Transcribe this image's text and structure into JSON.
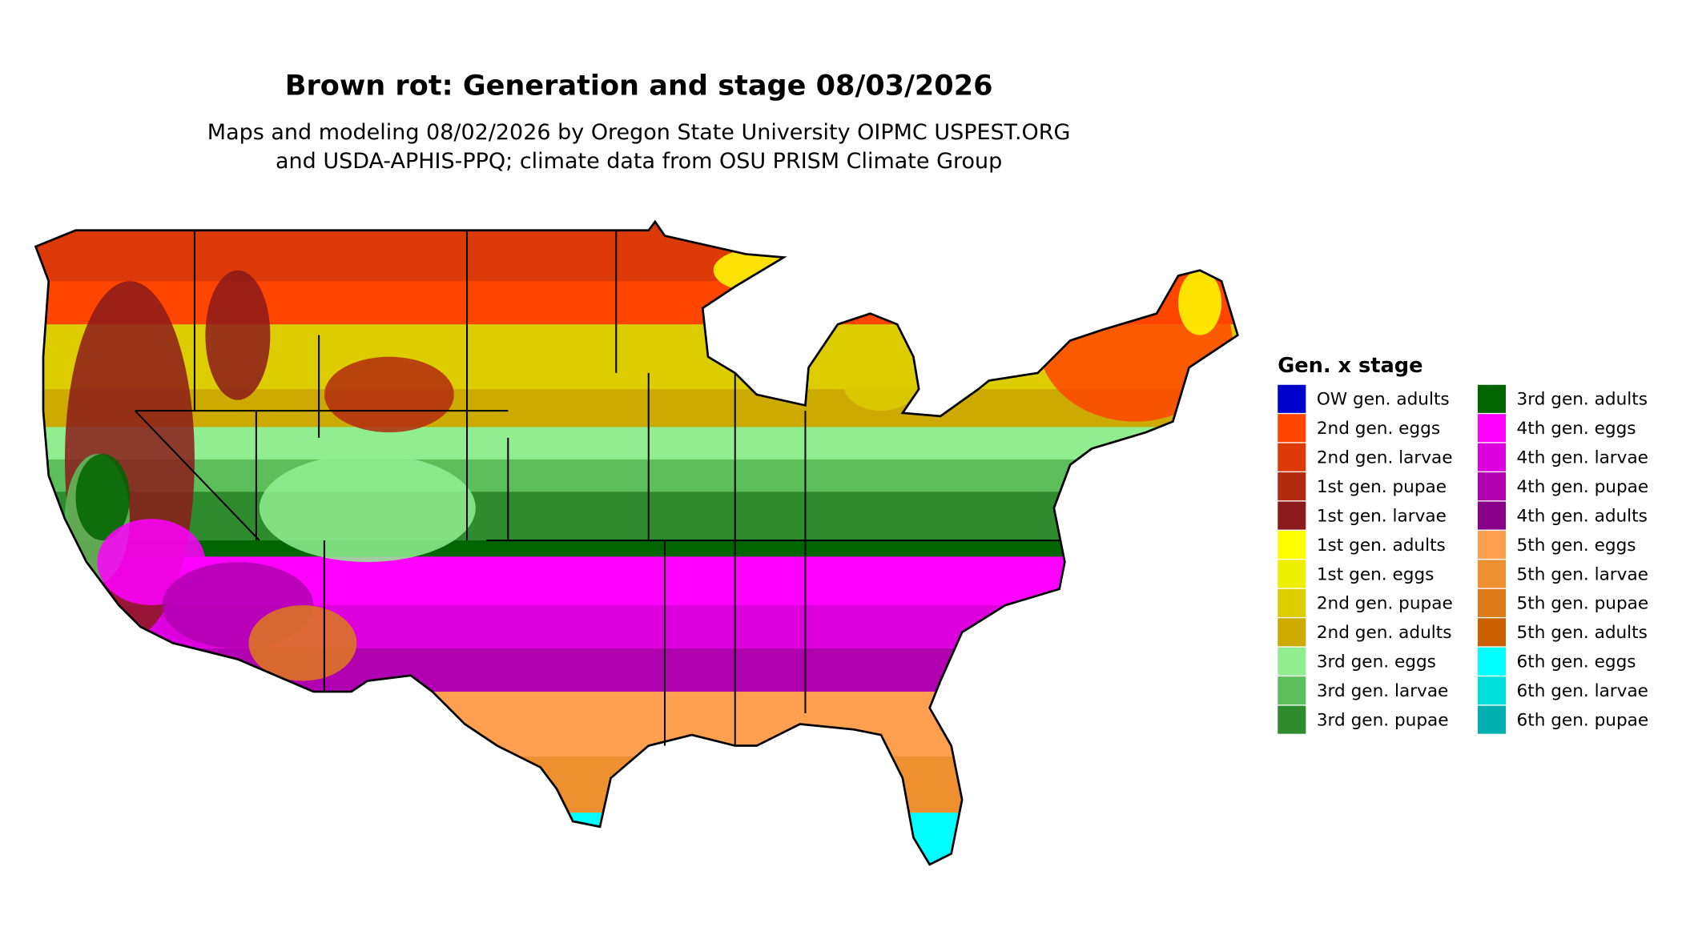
{
  "title": "Brown rot: Generation and stage 08/03/2026",
  "subtitle": [
    "Maps and modeling 08/02/2026 by Oregon State University OIPMC USPEST.ORG",
    "and USDA-APHIS-PPQ; climate data from OSU PRISM Climate Group"
  ],
  "legend": {
    "title": "Gen. x stage",
    "items": [
      {
        "label": "OW gen. adults",
        "color": "#0000cc"
      },
      {
        "label": "2nd gen. eggs",
        "color": "#ff4500"
      },
      {
        "label": "2nd gen. larvae",
        "color": "#dd3a0a"
      },
      {
        "label": "1st gen. pupae",
        "color": "#b22a0f"
      },
      {
        "label": "1st gen. larvae",
        "color": "#8b1a1a"
      },
      {
        "label": "1st gen. adults",
        "color": "#ffff00"
      },
      {
        "label": "1st gen. eggs",
        "color": "#eeee00"
      },
      {
        "label": "2nd gen. pupae",
        "color": "#ddcc00"
      },
      {
        "label": "2nd gen. adults",
        "color": "#ccaa00"
      },
      {
        "label": "3rd gen. eggs",
        "color": "#90ee90"
      },
      {
        "label": "3rd gen. larvae",
        "color": "#5cbf5c"
      },
      {
        "label": "3rd gen. pupae",
        "color": "#2e8b2e"
      },
      {
        "label": "3rd gen. adults",
        "color": "#006400"
      },
      {
        "label": "4th gen. eggs",
        "color": "#ff00ff"
      },
      {
        "label": "4th gen. larvae",
        "color": "#dd00dd"
      },
      {
        "label": "4th gen. pupae",
        "color": "#b000b0"
      },
      {
        "label": "4th gen. adults",
        "color": "#880088"
      },
      {
        "label": "5th gen. eggs",
        "color": "#ffa050"
      },
      {
        "label": "5th gen. larvae",
        "color": "#ee9030"
      },
      {
        "label": "5th gen. pupae",
        "color": "#dd7a1a"
      },
      {
        "label": "5th gen. adults",
        "color": "#cc6000"
      },
      {
        "label": "6th gen. eggs",
        "color": "#00ffff"
      },
      {
        "label": "6th gen. larvae",
        "color": "#00dddd"
      },
      {
        "label": "6th gen. pupae",
        "color": "#00b0b0"
      }
    ]
  }
}
